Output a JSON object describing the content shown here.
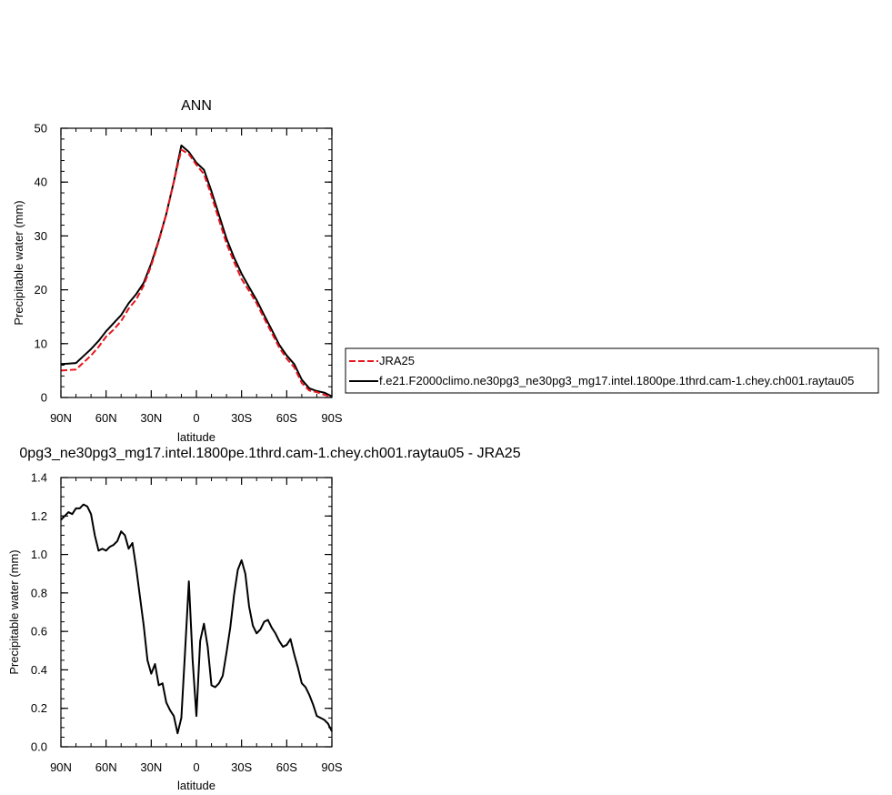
{
  "chart_data": [
    {
      "type": "line",
      "title": "ANN",
      "xlabel": "latitude",
      "ylabel": "Precipitable water (mm)",
      "xlim": [
        90,
        -90
      ],
      "ylim": [
        0,
        50
      ],
      "x_ticks": [
        90,
        60,
        30,
        0,
        -30,
        -60,
        -90
      ],
      "x_tick_labels": [
        "90N",
        "60N",
        "30N",
        "0",
        "30S",
        "60S",
        "90S"
      ],
      "y_ticks": [
        0,
        10,
        20,
        30,
        40,
        50
      ],
      "y_tick_labels": [
        "0",
        "10",
        "20",
        "30",
        "40",
        "50"
      ],
      "grid": false,
      "legend_position": "right",
      "series": [
        {
          "name": "JRA25",
          "color": "#e8141c",
          "dash": "dashed",
          "x": [
            90,
            85,
            80,
            75,
            70,
            65,
            60,
            55,
            50,
            45,
            40,
            35,
            30,
            25,
            20,
            15,
            10,
            5,
            0,
            -5,
            -10,
            -15,
            -20,
            -25,
            -30,
            -35,
            -40,
            -45,
            -50,
            -55,
            -60,
            -65,
            -70,
            -75,
            -80,
            -85,
            -90
          ],
          "y": [
            5.0,
            5.1,
            5.2,
            6.5,
            7.8,
            9.4,
            11.3,
            12.6,
            14.2,
            16.5,
            18.2,
            20.8,
            24.5,
            29.0,
            34.0,
            40.0,
            46.0,
            45.2,
            43.2,
            41.5,
            37.5,
            33.0,
            28.6,
            25.2,
            22.0,
            19.8,
            17.5,
            14.7,
            12.0,
            9.3,
            7.2,
            5.6,
            2.7,
            1.3,
            1.0,
            0.5,
            0.1
          ]
        },
        {
          "name": "f.e21.F2000climo.ne30pg3_ne30pg3_mg17.intel.1800pe.1thrd.cam-1.chey.ch001.raytau05",
          "color": "#000000",
          "dash": "solid",
          "x": [
            90,
            85,
            80,
            75,
            70,
            65,
            60,
            55,
            50,
            45,
            40,
            35,
            30,
            25,
            20,
            15,
            10,
            5,
            0,
            -5,
            -10,
            -15,
            -20,
            -25,
            -30,
            -35,
            -40,
            -45,
            -50,
            -55,
            -60,
            -65,
            -70,
            -75,
            -80,
            -85,
            -90
          ],
          "y": [
            6.2,
            6.3,
            6.4,
            7.7,
            9.0,
            10.5,
            12.3,
            13.8,
            15.3,
            17.5,
            19.2,
            21.3,
            24.9,
            29.2,
            34.1,
            40.1,
            46.8,
            45.6,
            43.6,
            42.3,
            38.3,
            33.9,
            29.5,
            26.0,
            23.0,
            20.5,
            18.1,
            15.3,
            12.6,
            9.8,
            7.8,
            6.2,
            3.3,
            1.7,
            1.2,
            0.9,
            0.2
          ]
        }
      ]
    },
    {
      "type": "line",
      "title": "0pg3_ne30pg3_mg17.intel.1800pe.1thrd.cam-1.chey.ch001.raytau05 - JRA25",
      "xlabel": "latitude",
      "ylabel": "Precipitable water (mm)",
      "xlim": [
        90,
        -90
      ],
      "ylim": [
        0,
        1.4
      ],
      "x_ticks": [
        90,
        60,
        30,
        0,
        -30,
        -60,
        -90
      ],
      "x_tick_labels": [
        "90N",
        "60N",
        "30N",
        "0",
        "30S",
        "60S",
        "90S"
      ],
      "y_ticks": [
        0,
        0.2,
        0.4,
        0.6,
        0.8,
        1.0,
        1.2,
        1.4
      ],
      "y_tick_labels": [
        "0.0",
        "0.2",
        "0.4",
        "0.6",
        "0.8",
        "1.0",
        "1.2",
        "1.4"
      ],
      "grid": false,
      "series": [
        {
          "color": "#000000",
          "dash": "solid",
          "x": [
            90,
            87.5,
            85,
            82.5,
            80,
            77.5,
            75,
            72.5,
            70,
            67.5,
            65,
            62.5,
            60,
            57.5,
            55,
            52.5,
            50,
            47.5,
            45,
            42.5,
            40,
            37.5,
            35,
            32.5,
            30,
            27.5,
            25,
            22.5,
            20,
            17.5,
            15,
            12.5,
            10,
            7.5,
            5,
            2.5,
            0,
            -2.5,
            -5,
            -7.5,
            -10,
            -12.5,
            -15,
            -17.5,
            -20,
            -22.5,
            -25,
            -27.5,
            -30,
            -32.5,
            -35,
            -37.5,
            -40,
            -42.5,
            -45,
            -47.5,
            -50,
            -52.5,
            -55,
            -57.5,
            -60,
            -62.5,
            -65,
            -67.5,
            -70,
            -72.5,
            -75,
            -77.5,
            -80,
            -82.5,
            -85,
            -87.5,
            -90
          ],
          "y": [
            1.18,
            1.2,
            1.22,
            1.21,
            1.24,
            1.24,
            1.26,
            1.25,
            1.21,
            1.1,
            1.02,
            1.03,
            1.02,
            1.04,
            1.05,
            1.07,
            1.12,
            1.1,
            1.03,
            1.06,
            0.93,
            0.78,
            0.63,
            0.45,
            0.38,
            0.43,
            0.32,
            0.33,
            0.23,
            0.19,
            0.16,
            0.07,
            0.15,
            0.5,
            0.86,
            0.45,
            0.16,
            0.55,
            0.64,
            0.52,
            0.32,
            0.31,
            0.33,
            0.37,
            0.49,
            0.62,
            0.79,
            0.92,
            0.97,
            0.9,
            0.73,
            0.63,
            0.59,
            0.61,
            0.65,
            0.66,
            0.62,
            0.59,
            0.55,
            0.52,
            0.53,
            0.56,
            0.48,
            0.41,
            0.33,
            0.31,
            0.27,
            0.22,
            0.16,
            0.15,
            0.14,
            0.12,
            0.08
          ]
        }
      ]
    }
  ]
}
